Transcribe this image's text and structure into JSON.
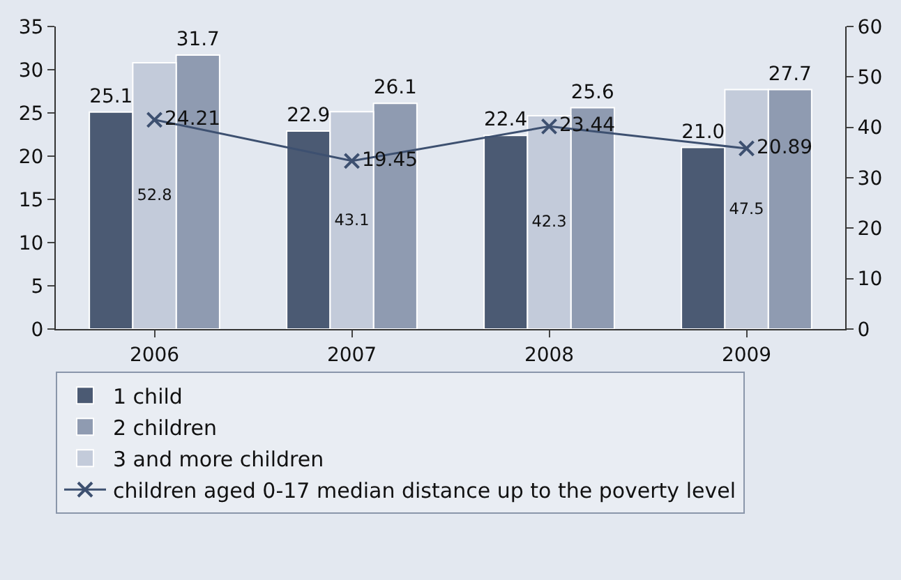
{
  "chart_data": {
    "type": "bar",
    "categories": [
      "2006",
      "2007",
      "2008",
      "2009"
    ],
    "series": [
      {
        "name": "1 child",
        "color": "#4b5a73",
        "values": [
          25.1,
          22.9,
          22.4,
          21.0
        ],
        "value_labels": [
          "25.1",
          "22.9",
          "22.4",
          "21.0"
        ]
      },
      {
        "name": "2 children",
        "color": "#8f9bb1",
        "values": [
          31.7,
          26.1,
          25.6,
          27.7
        ]
      },
      {
        "name": "3 and more children",
        "color": "#c3cbda",
        "values": [
          52.8,
          43.1,
          42.3,
          47.5
        ],
        "axis": "y2"
      },
      {
        "name": "children aged 0-17 median distance up to the poverty level",
        "type": "line",
        "color": "#3d5070",
        "marker": "cross",
        "values": [
          24.21,
          19.45,
          23.44,
          20.89
        ]
      }
    ],
    "ylim": [
      0,
      35
    ],
    "yticks": [
      0,
      5,
      10,
      15,
      20,
      25,
      30,
      35
    ],
    "y2lim": [
      0,
      60
    ],
    "y2ticks": [
      0,
      10,
      20,
      30,
      40,
      50,
      60
    ],
    "data_labels": true,
    "grid": false,
    "legend": "bottom"
  }
}
